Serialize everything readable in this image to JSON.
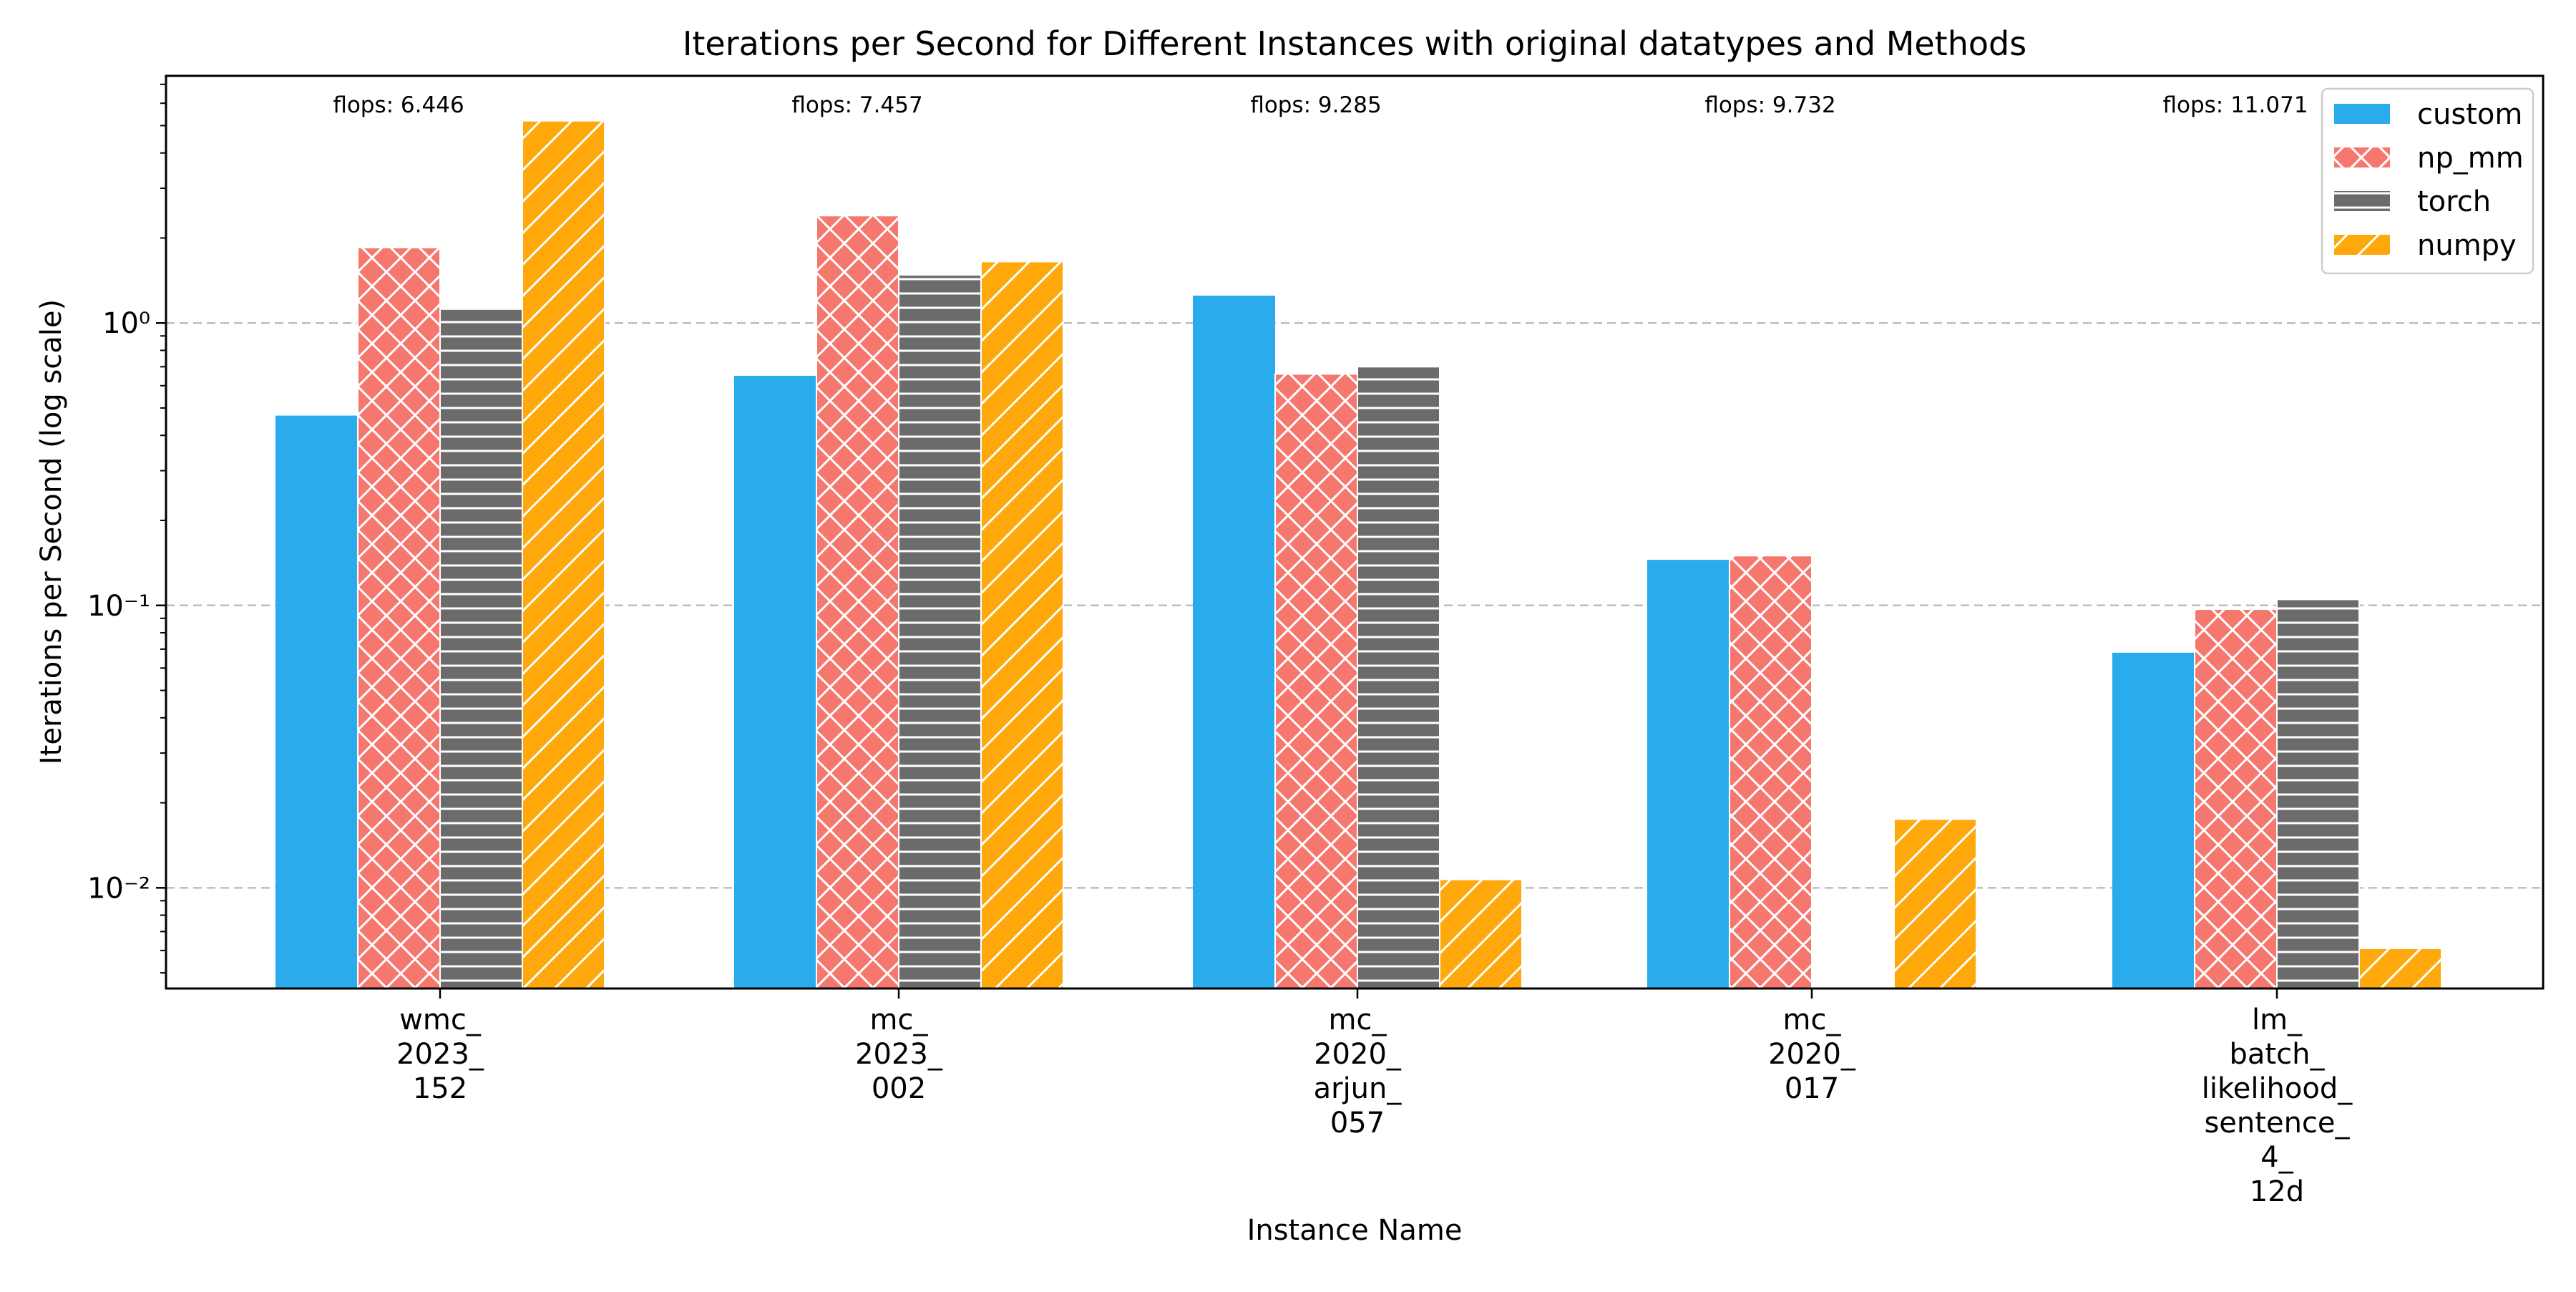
{
  "chart_data": {
    "type": "bar",
    "title": "Iterations per Second for Different Instances with original datatypes and Methods",
    "xlabel": "Instance Name",
    "ylabel": "Iterations per Second (log scale)",
    "yscale": "log",
    "ylim": [
      0.0044,
      7.5
    ],
    "yticks": [
      {
        "value": 1,
        "label": "10⁰"
      },
      {
        "value": 0.1,
        "label": "10⁻¹"
      },
      {
        "value": 0.01,
        "label": "10⁻²"
      }
    ],
    "grid": "horizontal dashed at major ticks",
    "legend_position": "top-right",
    "categories": [
      {
        "lines": [
          "wmc_",
          "2023_",
          "152"
        ],
        "annotation": "flops: 6.446"
      },
      {
        "lines": [
          "mc_",
          "2023_",
          "002"
        ],
        "annotation": "flops: 7.457"
      },
      {
        "lines": [
          "mc_",
          "2020_",
          "arjun_",
          "057"
        ],
        "annotation": "flops: 9.285"
      },
      {
        "lines": [
          "mc_",
          "2020_",
          "017"
        ],
        "annotation": "flops: 9.732"
      },
      {
        "lines": [
          "lm_",
          "batch_",
          "likelihood_",
          "sentence_",
          "4_",
          "12d"
        ],
        "annotation": "flops: 11.071"
      }
    ],
    "series": [
      {
        "name": "custom",
        "color": "#29abec",
        "pattern": "solid",
        "values": [
          0.47,
          0.65,
          1.25,
          0.145,
          0.068
        ]
      },
      {
        "name": "np_mm",
        "color": "#f5776e",
        "pattern": "crosshatch",
        "values": [
          1.85,
          2.4,
          0.66,
          0.15,
          0.097
        ]
      },
      {
        "name": "torch",
        "color": "#6b6b6b",
        "pattern": "horizontal",
        "values": [
          1.12,
          1.48,
          0.7,
          null,
          0.105
        ]
      },
      {
        "name": "numpy",
        "color": "#ffa80b",
        "pattern": "diagonal",
        "values": [
          5.2,
          1.65,
          0.0107,
          0.0175,
          0.0061
        ]
      }
    ]
  }
}
